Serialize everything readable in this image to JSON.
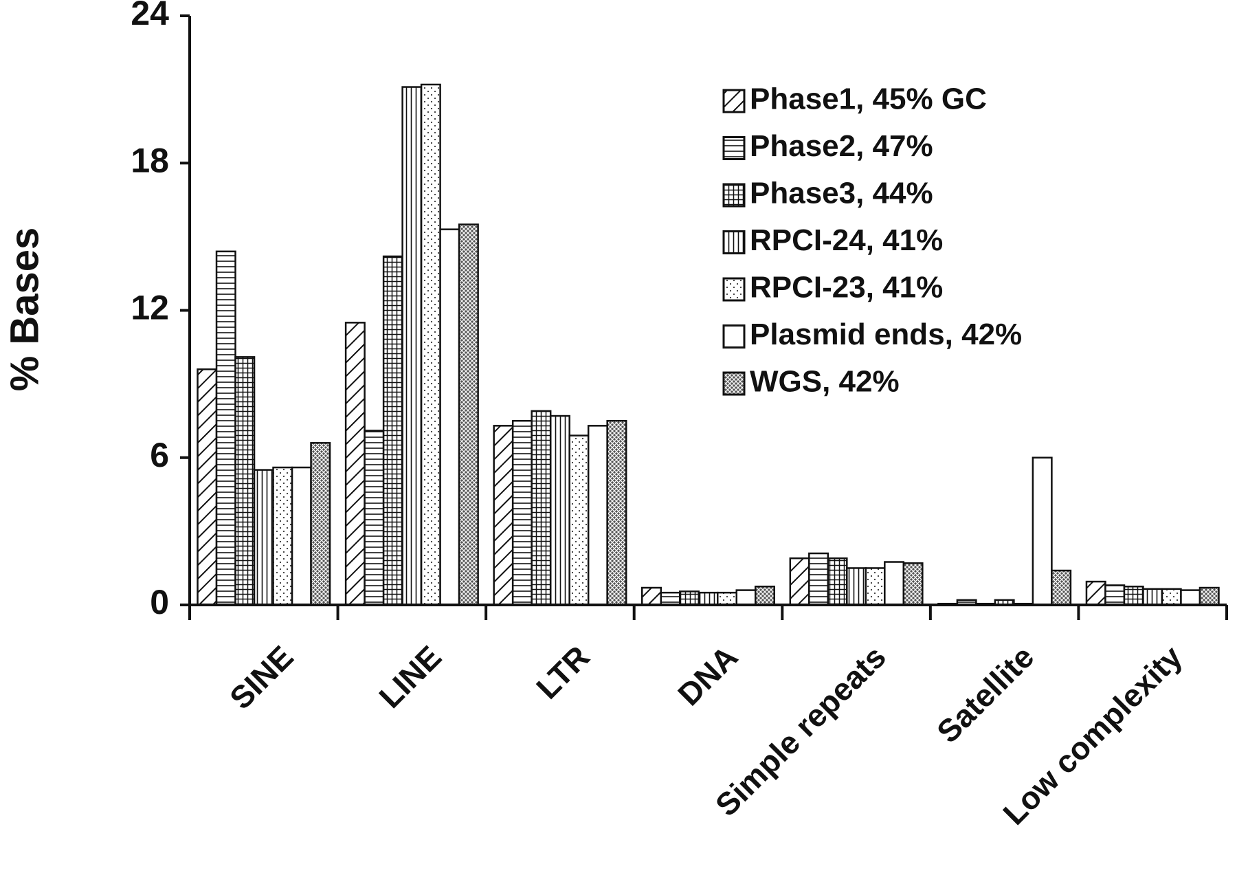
{
  "chart_data": {
    "type": "bar",
    "y_label": "% Bases",
    "categories": [
      "SINE",
      "LINE",
      "LTR",
      "DNA",
      "Simple repeats",
      "Satellite",
      "Low complexity"
    ],
    "series": [
      {
        "name": "Phase1, 45% GC",
        "pattern": "diagonal",
        "values": [
          9.6,
          11.5,
          7.3,
          0.7,
          1.9,
          0.05,
          0.95
        ]
      },
      {
        "name": "Phase2, 47%",
        "pattern": "horizontal",
        "values": [
          14.4,
          7.1,
          7.5,
          0.5,
          2.1,
          0.2,
          0.8
        ]
      },
      {
        "name": "Phase3, 44%",
        "pattern": "grid",
        "values": [
          10.1,
          14.2,
          7.9,
          0.55,
          1.9,
          0.05,
          0.75
        ]
      },
      {
        "name": "RPCI-24, 41%",
        "pattern": "vertical",
        "values": [
          5.5,
          21.1,
          7.7,
          0.5,
          1.5,
          0.2,
          0.65
        ]
      },
      {
        "name": "RPCI-23, 41%",
        "pattern": "dots",
        "values": [
          5.6,
          21.2,
          6.9,
          0.5,
          1.5,
          0.05,
          0.65
        ]
      },
      {
        "name": "Plasmid ends, 42%",
        "pattern": "plain",
        "values": [
          5.6,
          15.3,
          7.3,
          0.6,
          1.75,
          6.0,
          0.6
        ]
      },
      {
        "name": "WGS, 42%",
        "pattern": "crosshatch",
        "values": [
          6.6,
          15.5,
          7.5,
          0.75,
          1.7,
          1.4,
          0.7
        ]
      }
    ],
    "ylim": [
      0,
      24
    ],
    "yticks": [
      0,
      6,
      12,
      18,
      24
    ],
    "legend": "upper right"
  }
}
